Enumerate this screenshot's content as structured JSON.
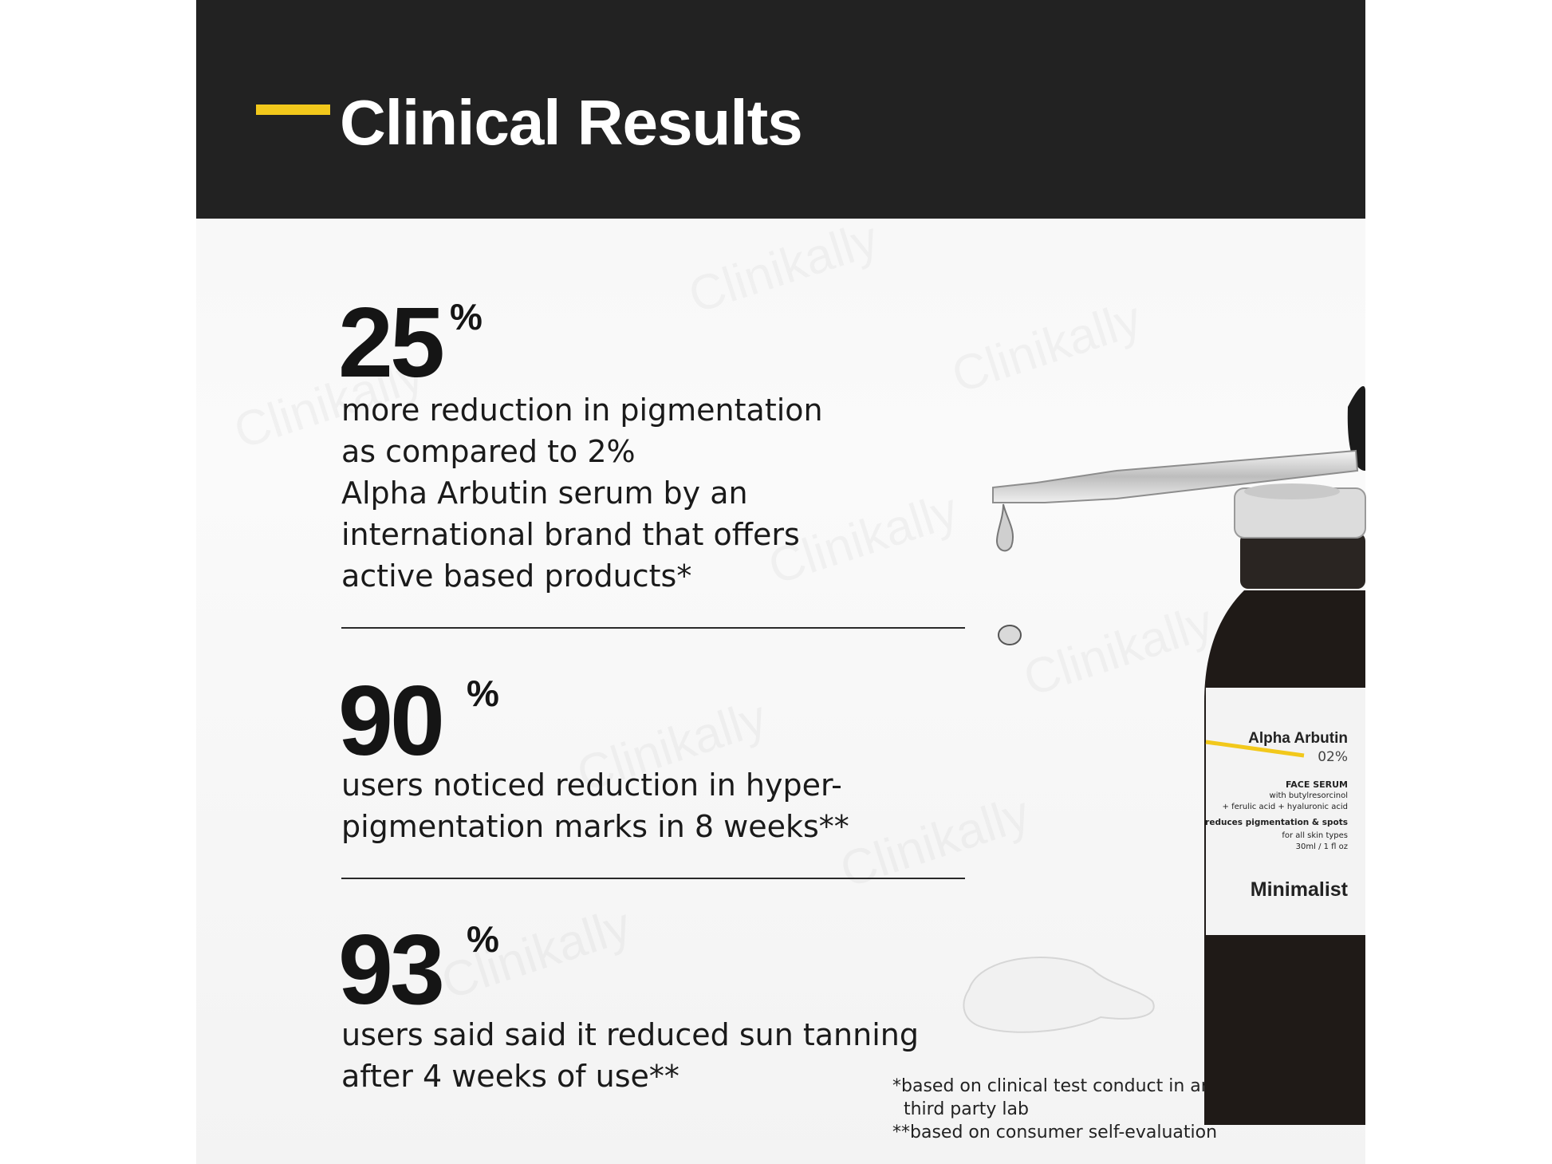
{
  "header": {
    "title": "Clinical Results",
    "accent_color": "#f2c81b",
    "background": "#222222"
  },
  "stats": [
    {
      "value": "25",
      "unit": "%",
      "description": "more reduction in pigmentation\nas compared to 2%\nAlpha Arbutin serum by an\ninternational brand that offers\nactive based products*"
    },
    {
      "value": "90",
      "unit": "%",
      "description": "users noticed reduction in hyper-\npigmentation marks in 8 weeks**"
    },
    {
      "value": "93",
      "unit": "%",
      "description": "users said said it reduced sun tanning\nafter 4 weeks of use**"
    }
  ],
  "footnotes": {
    "line1": "*based on clinical test conduct in an independent\n  third party lab",
    "line2": "**based on consumer self-evaluation"
  },
  "product_label": {
    "name": "Alpha Arbutin",
    "strength": "02%",
    "type": "FACE SERUM",
    "with_1": "with butylresorcinol",
    "with_2": "+ ferulic acid + hyaluronic acid",
    "claim": "reduces pigmentation & spots",
    "skin": "for all skin types",
    "size": "30ml / 1 fl oz",
    "brand": "Minimalist"
  },
  "watermark": "Clinikally"
}
